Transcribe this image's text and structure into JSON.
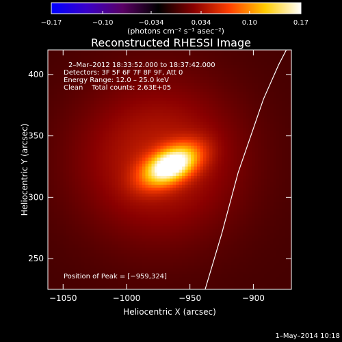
{
  "chart_data": {
    "type": "heatmap",
    "title": "Reconstructed RHESSI Image",
    "xlabel": "Heliocentric X (arcsec)",
    "ylabel": "Heliocentric Y (arcsec)",
    "xlim": [
      -1062,
      -870
    ],
    "ylim": [
      225,
      420
    ],
    "xticks": [
      -1050,
      -1000,
      -950,
      -900
    ],
    "xtick_labels": [
      "−1050",
      "−1000",
      "−950",
      "−900"
    ],
    "yticks": [
      250,
      300,
      350,
      400
    ],
    "ytick_labels": [
      "250",
      "300",
      "350",
      "400"
    ],
    "colorbar": {
      "range": [
        -0.17,
        0.17
      ],
      "ticks": [
        -0.17,
        -0.1,
        -0.034,
        0.034,
        0.1,
        0.17
      ],
      "tick_labels": [
        "−0.17",
        "−0.10",
        "−0.034",
        "0.034",
        "0.10",
        "0.17"
      ],
      "unit_label": "(photons cm⁻² s⁻¹ asec⁻²)",
      "colors": [
        "#0000ff",
        "#3a00c8",
        "#5a0064",
        "#000000",
        "#8a0000",
        "#ff4000",
        "#ffcc00",
        "#ffffff"
      ]
    },
    "source": {
      "center_x": -965,
      "center_y": 326,
      "sigma_major": 16,
      "sigma_minor": 9,
      "angle_deg": 28,
      "peak": 0.17,
      "halo_sigma": 45,
      "halo_level": 0.045
    },
    "limb_curve": [
      [
        -938,
        225
      ],
      [
        -925,
        270
      ],
      [
        -912,
        320
      ],
      [
        -902,
        350
      ],
      [
        -892,
        380
      ],
      [
        -880,
        408
      ],
      [
        -874,
        420
      ]
    ],
    "annotations": {
      "time_range": "2–Mar–2012 18:33:52.000 to 18:37:42.000",
      "detectors": "Detectors: 3F 5F 6F 7F 8F 9F, Att 0",
      "energy": "Energy Range: 12.0 – 25.0 keV",
      "clean": "Clean    Total counts: 2.63E+05",
      "peak": "Position of Peak = [−959,324]"
    },
    "footer_date": "1–May–2014 10:18"
  }
}
